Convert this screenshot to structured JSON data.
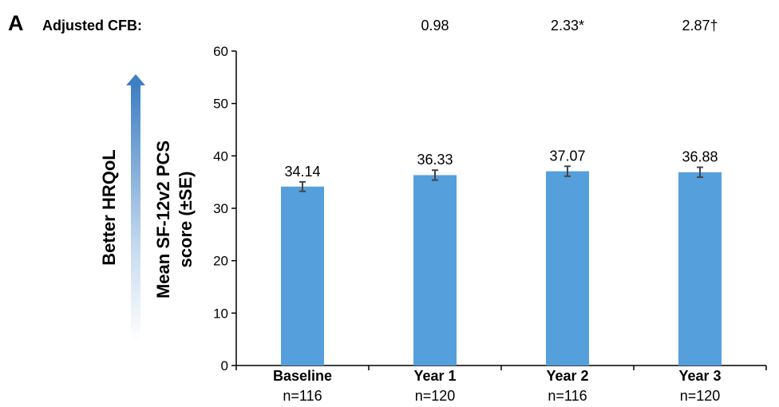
{
  "panel_label": "A",
  "cfb": {
    "label": "Adjusted CFB:",
    "values": [
      "",
      "0.98",
      "2.33*",
      "2.87†"
    ]
  },
  "arrow_label": "Better HRQoL",
  "colors": {
    "bar": "#559fdd",
    "error": "#444444",
    "arrow": "#3e7fc4",
    "axis": "#000000"
  },
  "chart_data": {
    "type": "bar",
    "title": "",
    "xlabel": "",
    "ylabel": [
      "Mean SF-12v2 PCS",
      "score (±SE)"
    ],
    "ylim": [
      0,
      60
    ],
    "yticks": [
      0,
      10,
      20,
      30,
      40,
      50,
      60
    ],
    "categories": [
      "Baseline",
      "Year 1",
      "Year 2",
      "Year 3"
    ],
    "n_labels": [
      "n=116",
      "n=120",
      "n=116",
      "n=120"
    ],
    "values": [
      34.14,
      36.33,
      37.07,
      36.88
    ],
    "value_labels": [
      "34.14",
      "36.33",
      "37.07",
      "36.88"
    ],
    "errors": [
      0.9,
      0.95,
      0.95,
      0.95
    ],
    "grid": false,
    "legend": "none"
  }
}
